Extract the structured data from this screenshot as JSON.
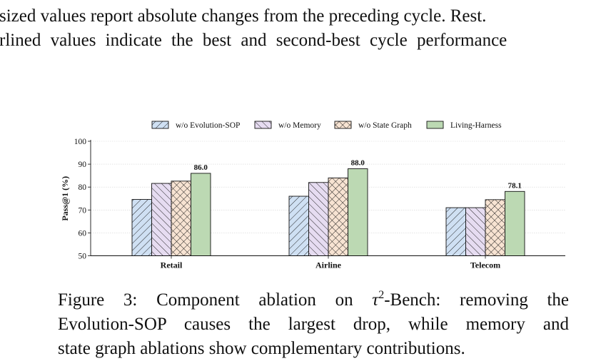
{
  "paper": {
    "top_line_1": "sized values report absolute changes from the preceding cycle. Rest.",
    "top_line_2": "rlined values indicate the best and second-best cycle performance",
    "caption": {
      "figure_label": "Figure 3:",
      "line1_pre": "Component ablation on ",
      "tau": "τ",
      "sup": "2",
      "line1_post": "-Bench: removing the",
      "line2": "Evolution-SOP causes the largest drop, while memory and",
      "line3": "state graph ablations show complementary contributions."
    }
  },
  "chart_data": {
    "type": "bar",
    "ylabel": "Pass@1 (%)",
    "ylim": [
      50,
      100
    ],
    "yticks": [
      50,
      60,
      70,
      80,
      90,
      100
    ],
    "grid": true,
    "legend_position": "top",
    "categories": [
      "Retail",
      "Airline",
      "Telecom"
    ],
    "series": [
      {
        "name": "w/o Evolution-SOP",
        "values": [
          74.6,
          76.0,
          71.0
        ],
        "color": "#cfe0f3",
        "pattern": "diagonal-forward"
      },
      {
        "name": "w/o Memory",
        "values": [
          81.6,
          82.0,
          71.0
        ],
        "color": "#e6dcf1",
        "pattern": "diagonal-back"
      },
      {
        "name": "w/o State Graph",
        "values": [
          82.6,
          84.0,
          74.5
        ],
        "color": "#f7e3d2",
        "pattern": "crosshatch"
      },
      {
        "name": "Living-Harness",
        "values": [
          86.0,
          88.0,
          78.1
        ],
        "color": "#bcd9b3",
        "pattern": "solid"
      }
    ],
    "data_labels": [
      {
        "category": "Retail",
        "series": "Living-Harness",
        "text": "86.0"
      },
      {
        "category": "Airline",
        "series": "Living-Harness",
        "text": "88.0"
      },
      {
        "category": "Telecom",
        "series": "Living-Harness",
        "text": "78.1"
      }
    ]
  }
}
